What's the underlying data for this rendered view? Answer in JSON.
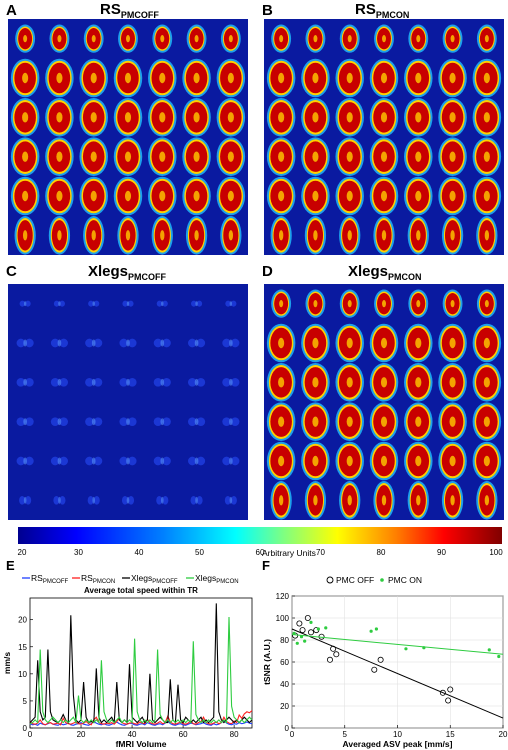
{
  "panels": {
    "A": {
      "letter": "A",
      "title_main": "RS",
      "title_sub": "PMCOFF",
      "brain_color": "#c80000",
      "intensity": 0.85
    },
    "B": {
      "letter": "B",
      "title_main": "RS",
      "title_sub": "PMCON",
      "brain_color": "#c80000",
      "intensity": 0.85
    },
    "C": {
      "letter": "C",
      "title_main": "Xlegs",
      "title_sub": "PMCOFF",
      "brain_color": "#2a50ff",
      "intensity": 0.15
    },
    "D": {
      "letter": "D",
      "title_main": "Xlegs",
      "title_sub": "PMCON",
      "brain_color": "#c80000",
      "intensity": 0.75
    },
    "E": {
      "letter": "E"
    },
    "F": {
      "letter": "F"
    }
  },
  "colorbar": {
    "ticks": [
      "20",
      "30",
      "40",
      "50",
      "60",
      "70",
      "80",
      "90",
      "100"
    ],
    "label": "Arbitrary Units",
    "range": [
      20,
      100
    ]
  },
  "chart_data": [
    {
      "type": "line",
      "title": "Average total speed within TR",
      "xlabel": "fMRI Volume",
      "ylabel": "mm/s",
      "xlim": [
        0,
        87
      ],
      "ylim": [
        0,
        24
      ],
      "yticks": [
        "0",
        "5",
        "10",
        "15",
        "20"
      ],
      "xticks": [
        "0",
        "20",
        "40",
        "60",
        "80"
      ],
      "legend": [
        {
          "main": "RS",
          "sub": "PMCOFF",
          "color": "#1f3fff"
        },
        {
          "main": "RS",
          "sub": "PMCON",
          "color": "#ff2020"
        },
        {
          "main": "Xlegs",
          "sub": "PMCOFF",
          "color": "#000000"
        },
        {
          "main": "Xlegs",
          "sub": "PMCON",
          "color": "#2ecc40"
        }
      ],
      "legend_placement": "top",
      "series": [
        {
          "name": "RSPMCOFF",
          "color": "#1f3fff",
          "values": [
            0.8,
            0.6,
            0.7,
            0.5,
            0.9,
            0.7,
            0.6,
            0.8,
            1.0,
            0.7,
            0.6,
            0.5,
            0.8,
            0.6,
            0.7,
            0.9,
            0.6,
            0.5,
            0.7,
            0.8,
            1.0,
            0.7,
            0.6,
            0.5,
            0.8,
            1.2,
            0.9,
            0.7,
            0.6,
            0.8,
            0.6,
            0.5,
            0.7,
            0.9,
            1.1,
            0.8,
            0.6,
            0.5,
            0.7,
            0.9,
            0.8,
            0.6,
            0.5,
            0.7,
            0.8,
            0.6,
            1.0,
            0.8,
            0.6,
            0.5,
            0.7,
            0.8,
            0.6,
            0.9,
            1.3,
            0.8,
            0.6,
            0.5,
            0.7,
            0.8,
            0.6,
            0.5,
            0.7,
            0.9,
            0.8,
            0.6,
            0.7,
            0.8,
            1.0,
            0.7,
            0.6,
            0.5,
            0.8,
            0.6,
            0.7,
            1.0,
            1.4,
            0.9,
            0.7,
            0.6,
            0.8,
            0.7,
            1.0,
            0.8,
            0.9,
            1.1,
            0.9,
            0.8
          ]
        },
        {
          "name": "RSPMCON",
          "color": "#ff2020",
          "values": [
            1.2,
            0.8,
            0.7,
            0.9,
            1.5,
            0.8,
            0.6,
            0.9,
            1.0,
            0.7,
            0.8,
            0.9,
            0.6,
            1.8,
            1.0,
            0.8,
            0.7,
            0.9,
            1.1,
            0.8,
            0.7,
            0.9,
            1.2,
            0.8,
            0.6,
            1.5,
            2.0,
            1.0,
            0.8,
            0.7,
            0.9,
            0.8,
            1.0,
            0.7,
            1.2,
            1.8,
            1.0,
            0.8,
            0.7,
            0.9,
            1.0,
            0.8,
            0.7,
            1.1,
            0.9,
            0.8,
            1.6,
            1.0,
            0.8,
            0.7,
            0.9,
            1.2,
            0.8,
            1.0,
            2.2,
            1.1,
            0.8,
            0.7,
            0.9,
            1.1,
            0.8,
            0.7,
            0.9,
            1.3,
            0.8,
            0.7,
            1.0,
            1.2,
            2.0,
            1.0,
            0.8,
            0.7,
            0.9,
            1.1,
            0.8,
            1.0,
            2.0,
            1.2,
            0.9,
            0.8,
            1.3,
            1.0,
            2.4,
            1.8,
            2.6,
            3.0,
            2.8,
            3.2
          ]
        },
        {
          "name": "XlegsPMCOFF",
          "color": "#000000",
          "values": [
            1.0,
            1.5,
            2.0,
            12.5,
            3.0,
            1.5,
            2.0,
            14.5,
            3.0,
            1.5,
            1.2,
            1.0,
            1.5,
            2.5,
            1.5,
            1.0,
            20.8,
            6.0,
            1.5,
            1.0,
            1.5,
            8.5,
            2.0,
            1.0,
            1.2,
            1.0,
            11.0,
            2.0,
            1.0,
            1.5,
            1.0,
            1.5,
            2.0,
            1.0,
            8.5,
            1.5,
            1.0,
            1.5,
            1.0,
            11.8,
            2.0,
            1.5,
            1.0,
            1.5,
            2.0,
            1.0,
            1.5,
            10.0,
            1.5,
            1.0,
            1.5,
            2.0,
            1.5,
            1.0,
            1.0,
            9.0,
            1.5,
            1.0,
            8.0,
            1.5,
            1.0,
            2.0,
            1.5,
            1.0,
            1.5,
            1.0,
            1.5,
            2.0,
            1.0,
            1.5,
            1.0,
            1.5,
            2.0,
            23.0,
            3.0,
            1.5,
            1.0,
            1.5,
            2.0,
            1.5,
            1.0,
            1.5,
            1.0,
            1.5,
            2.0,
            1.5,
            1.0,
            1.5
          ]
        },
        {
          "name": "XlegsPMCON",
          "color": "#2ecc40",
          "values": [
            0.8,
            1.0,
            1.5,
            1.0,
            14.5,
            3.0,
            1.5,
            1.0,
            1.5,
            2.0,
            1.5,
            1.0,
            1.5,
            1.0,
            1.5,
            1.0,
            1.5,
            2.0,
            1.0,
            6.0,
            1.5,
            1.0,
            1.5,
            1.0,
            1.5,
            1.0,
            1.5,
            1.0,
            12.5,
            3.0,
            1.5,
            1.0,
            1.5,
            1.0,
            1.5,
            2.0,
            1.0,
            1.5,
            1.0,
            1.5,
            1.0,
            16.5,
            3.0,
            1.5,
            1.0,
            1.5,
            1.0,
            1.5,
            1.0,
            1.5,
            14.5,
            2.5,
            1.5,
            1.0,
            1.5,
            1.0,
            1.5,
            1.0,
            1.5,
            1.0,
            1.5,
            1.0,
            1.5,
            1.0,
            16.0,
            2.5,
            1.5,
            1.0,
            1.5,
            1.0,
            1.5,
            1.0,
            1.5,
            1.0,
            1.5,
            1.0,
            1.5,
            1.0,
            20.5,
            4.0,
            2.0,
            1.5,
            1.0,
            1.5,
            1.0,
            1.5,
            2.0,
            1.5
          ]
        }
      ]
    },
    {
      "type": "scatter",
      "xlabel": "Averaged ASV peak [mm/s]",
      "ylabel": "tSNR (A.U.)",
      "xlim": [
        0,
        20
      ],
      "ylim": [
        0,
        120
      ],
      "xticks": [
        "0",
        "5",
        "10",
        "15",
        "20"
      ],
      "yticks": [
        "0",
        "20",
        "40",
        "60",
        "80",
        "100",
        "120"
      ],
      "legend_placement": "top",
      "series": [
        {
          "name": "PMC OFF",
          "color": "#000000",
          "marker": "circle",
          "x": [
            0.3,
            0.7,
            1.0,
            1.5,
            1.8,
            2.3,
            2.8,
            3.6,
            3.9,
            4.2,
            7.8,
            8.4,
            14.3,
            14.8,
            15.0
          ],
          "y": [
            84,
            95,
            89,
            100,
            87,
            89,
            83,
            62,
            72,
            67,
            53,
            62,
            32,
            25,
            35
          ],
          "fit": {
            "x": [
              0,
              20
            ],
            "y": [
              90,
              9
            ]
          }
        },
        {
          "name": "PMC ON",
          "color": "#2ecc40",
          "marker": "dot",
          "x": [
            0.2,
            0.5,
            0.9,
            1.2,
            1.8,
            2.5,
            3.2,
            7.5,
            8.0,
            10.8,
            12.5,
            18.7,
            19.6
          ],
          "y": [
            86,
            77,
            83,
            79,
            96,
            90,
            91,
            88,
            90,
            72,
            73,
            71,
            65
          ],
          "fit": {
            "x": [
              0,
              20
            ],
            "y": [
              85,
              67
            ]
          }
        }
      ]
    }
  ]
}
